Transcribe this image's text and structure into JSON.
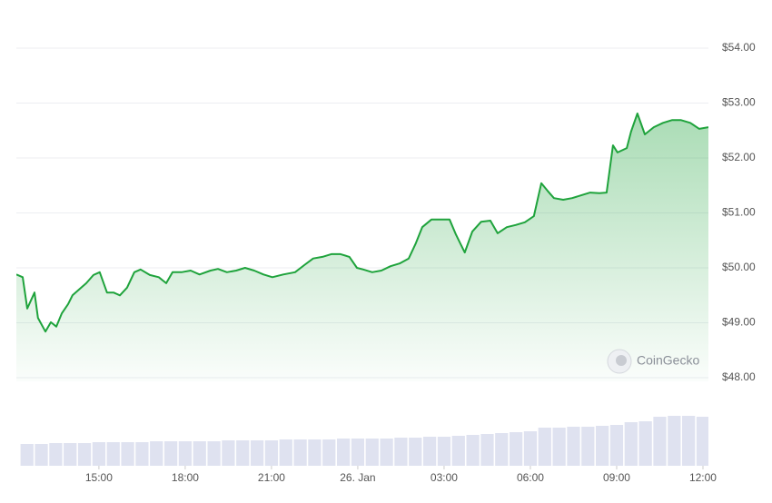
{
  "chart_data": [
    {
      "type": "line",
      "color": "#1fa33c",
      "watermark": "CoinGecko",
      "x": [
        12.13,
        12.35,
        12.51,
        12.76,
        12.88,
        13.14,
        13.33,
        13.52,
        13.71,
        13.93,
        14.08,
        14.34,
        14.56,
        14.81,
        15.03,
        15.28,
        15.51,
        15.73,
        15.98,
        16.23,
        16.45,
        16.77,
        17.08,
        17.34,
        17.56,
        17.87,
        18.19,
        18.5,
        18.88,
        19.14,
        19.45,
        19.77,
        20.08,
        20.4,
        20.72,
        21.03,
        21.41,
        21.82,
        22.14,
        22.45,
        22.77,
        23.08,
        23.4,
        23.71,
        23.97,
        24.19,
        24.5,
        24.82,
        25.14,
        25.45,
        25.77,
        26.02,
        26.24,
        26.56,
        26.87,
        27.19,
        27.41,
        27.72,
        27.98,
        28.29,
        28.61,
        28.86,
        29.18,
        29.49,
        29.81,
        30.12,
        30.38,
        30.6,
        30.82,
        31.14,
        31.45,
        31.77,
        32.08,
        32.4,
        32.65,
        32.87,
        33.03,
        33.35,
        33.5,
        33.72,
        33.98,
        34.29,
        34.61,
        34.92,
        35.24,
        35.56,
        35.87,
        36.19
      ],
      "values": [
        49.88,
        49.83,
        49.26,
        49.55,
        49.09,
        48.84,
        49.01,
        48.93,
        49.17,
        49.34,
        49.5,
        49.62,
        49.72,
        49.87,
        49.92,
        49.55,
        49.55,
        49.5,
        49.64,
        49.92,
        49.97,
        49.87,
        49.83,
        49.72,
        49.92,
        49.92,
        49.95,
        49.88,
        49.95,
        49.98,
        49.92,
        49.95,
        50.0,
        49.95,
        49.88,
        49.83,
        49.88,
        49.92,
        50.05,
        50.17,
        50.2,
        50.25,
        50.25,
        50.2,
        50.0,
        49.97,
        49.92,
        49.95,
        50.03,
        50.08,
        50.17,
        50.45,
        50.74,
        50.88,
        50.88,
        50.88,
        50.61,
        50.28,
        50.66,
        50.84,
        50.86,
        50.63,
        50.74,
        50.78,
        50.83,
        50.94,
        51.54,
        51.4,
        51.27,
        51.24,
        51.27,
        51.32,
        51.37,
        51.36,
        51.37,
        52.23,
        52.1,
        52.18,
        52.48,
        52.81,
        52.43,
        52.56,
        52.64,
        52.69,
        52.69,
        52.64,
        52.53,
        52.56
      ],
      "xlim": [
        12.13,
        36.19
      ],
      "ylim": [
        48,
        54
      ],
      "yticks": [
        {
          "value": 48,
          "label": "$48.00"
        },
        {
          "value": 49,
          "label": "$49.00"
        },
        {
          "value": 50,
          "label": "$50.00"
        },
        {
          "value": 51,
          "label": "$51.00"
        },
        {
          "value": 52,
          "label": "$52.00"
        },
        {
          "value": 53,
          "label": "$53.00"
        },
        {
          "value": 54,
          "label": "$54.00"
        }
      ],
      "grid": true
    },
    {
      "type": "bar",
      "color": "#dfe2f0",
      "x": [
        12.5,
        13.0,
        13.5,
        14.0,
        14.5,
        15.0,
        15.5,
        16.0,
        16.5,
        17.0,
        17.5,
        18.0,
        18.5,
        19.0,
        19.5,
        20.0,
        20.5,
        21.0,
        21.5,
        22.0,
        22.5,
        23.0,
        23.5,
        24.0,
        24.5,
        25.0,
        25.5,
        26.0,
        26.5,
        27.0,
        27.5,
        28.0,
        28.5,
        29.0,
        29.5,
        30.0,
        30.5,
        31.0,
        31.5,
        32.0,
        32.5,
        33.0,
        33.5,
        34.0,
        34.5,
        35.0,
        35.5,
        36.0
      ],
      "values": [
        24,
        24,
        25,
        25,
        25,
        26,
        26,
        26,
        26,
        27,
        27,
        27,
        27,
        27,
        28,
        28,
        28,
        28,
        29,
        29,
        29,
        29,
        30,
        30,
        30,
        30,
        31,
        31,
        32,
        32,
        33,
        34,
        35,
        36,
        37,
        38,
        42,
        42,
        43,
        43,
        44,
        45,
        48,
        49,
        54,
        55,
        55,
        54
      ],
      "xlim": [
        12.13,
        36.19
      ],
      "ylim": [
        0,
        60
      ],
      "xticks": [
        {
          "value": 15,
          "label": "15:00"
        },
        {
          "value": 18,
          "label": "18:00"
        },
        {
          "value": 21,
          "label": "21:00"
        },
        {
          "value": 24,
          "label": "26. Jan"
        },
        {
          "value": 27,
          "label": "03:00"
        },
        {
          "value": 30,
          "label": "06:00"
        },
        {
          "value": 33,
          "label": "09:00"
        },
        {
          "value": 36,
          "label": "12:00"
        }
      ]
    }
  ]
}
